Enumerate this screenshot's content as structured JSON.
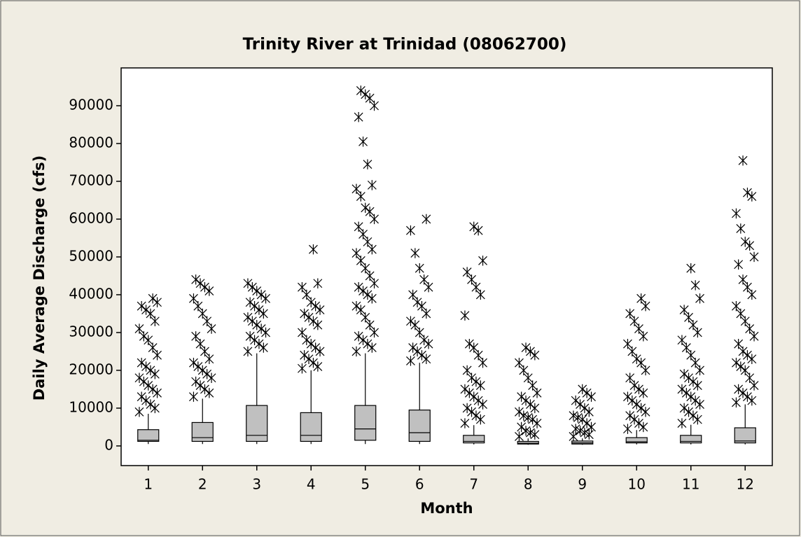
{
  "chart_data": {
    "type": "box",
    "title": "Trinity River at Trinidad (08062700)",
    "xlabel": "Month",
    "ylabel": "Daily Average Discharge (cfs)",
    "categories": [
      "1",
      "2",
      "3",
      "4",
      "5",
      "6",
      "7",
      "8",
      "9",
      "10",
      "11",
      "12"
    ],
    "color": "#c0c0c0",
    "ylim": [
      -5200,
      100000
    ],
    "yticks": [
      0,
      10000,
      20000,
      30000,
      40000,
      50000,
      60000,
      70000,
      80000,
      90000
    ],
    "boxes": [
      {
        "min": 500,
        "q1": 1200,
        "median": 1500,
        "q3": 4300,
        "max": 8500,
        "outliers": [
          9000,
          10000,
          11000,
          12000,
          13000,
          14000,
          15000,
          16000,
          17000,
          18000,
          19000,
          20000,
          21000,
          22000,
          24000,
          26000,
          28000,
          29000,
          31000,
          33000,
          35000,
          36000,
          37000,
          38000,
          39000
        ]
      },
      {
        "min": 500,
        "q1": 1200,
        "median": 2200,
        "q3": 6200,
        "max": 12500,
        "outliers": [
          13000,
          14000,
          15000,
          16000,
          17000,
          18000,
          19000,
          20000,
          21000,
          22000,
          23000,
          25000,
          27000,
          29000,
          31000,
          33000,
          35000,
          37000,
          39000,
          41000,
          42000,
          43000,
          44000
        ]
      },
      {
        "min": 500,
        "q1": 1200,
        "median": 2800,
        "q3": 10700,
        "max": 24500,
        "outliers": [
          25000,
          26000,
          27000,
          28000,
          29000,
          30000,
          31000,
          32000,
          33000,
          34000,
          35000,
          36000,
          37000,
          38000,
          39000,
          40000,
          41000,
          42000,
          43000
        ]
      },
      {
        "min": 500,
        "q1": 1200,
        "median": 2800,
        "q3": 8800,
        "max": 20000,
        "outliers": [
          20500,
          21000,
          22000,
          23000,
          24000,
          25000,
          26000,
          27000,
          28000,
          30000,
          32000,
          33000,
          34000,
          35000,
          36000,
          37000,
          38000,
          40000,
          42000,
          43000,
          52000
        ]
      },
      {
        "min": 500,
        "q1": 1500,
        "median": 4500,
        "q3": 10700,
        "max": 24500,
        "outliers": [
          25000,
          26000,
          27000,
          28000,
          29000,
          30000,
          32000,
          34000,
          36000,
          37000,
          39000,
          40000,
          41000,
          42000,
          43000,
          45000,
          47000,
          49000,
          51000,
          52000,
          54000,
          56000,
          58000,
          60000,
          62000,
          63000,
          66000,
          68000,
          69000,
          74500,
          80500,
          87000,
          90000,
          92000,
          93000,
          94000
        ]
      },
      {
        "min": 500,
        "q1": 1200,
        "median": 3500,
        "q3": 9500,
        "max": 22000,
        "outliers": [
          22500,
          23000,
          24000,
          25000,
          26000,
          27000,
          28000,
          30000,
          32000,
          33000,
          35000,
          37000,
          38000,
          40000,
          42000,
          44000,
          47000,
          51000,
          57000,
          60000
        ]
      },
      {
        "min": 400,
        "q1": 800,
        "median": 1200,
        "q3": 2800,
        "max": 5500,
        "outliers": [
          6000,
          7000,
          8000,
          9000,
          10000,
          11000,
          12000,
          13000,
          14000,
          15000,
          16000,
          17000,
          18000,
          20000,
          22000,
          24000,
          26000,
          27000,
          34500,
          40000,
          42000,
          44000,
          46000,
          49000,
          57000,
          58000
        ]
      },
      {
        "min": 300,
        "q1": 500,
        "median": 700,
        "q3": 1200,
        "max": 2000,
        "outliers": [
          2500,
          3000,
          3500,
          4000,
          5000,
          6000,
          7000,
          7500,
          8000,
          9000,
          10000,
          11000,
          12000,
          13000,
          14000,
          16000,
          18000,
          20000,
          22000,
          24000,
          25000,
          26000
        ]
      },
      {
        "min": 300,
        "q1": 500,
        "median": 800,
        "q3": 1300,
        "max": 2000,
        "outliers": [
          2500,
          3000,
          3500,
          4000,
          4500,
          5000,
          6000,
          7000,
          7500,
          8000,
          9000,
          10000,
          11000,
          12000,
          13000,
          14000,
          15000
        ]
      },
      {
        "min": 400,
        "q1": 800,
        "median": 1100,
        "q3": 2200,
        "max": 4200,
        "outliers": [
          4500,
          5000,
          6000,
          7000,
          8000,
          9000,
          10000,
          11000,
          12000,
          13000,
          14000,
          15000,
          16000,
          18000,
          20000,
          22000,
          23000,
          25000,
          27000,
          29000,
          31000,
          33000,
          35000,
          37000,
          39000
        ]
      },
      {
        "min": 400,
        "q1": 800,
        "median": 1200,
        "q3": 2800,
        "max": 5600,
        "outliers": [
          6000,
          7000,
          8000,
          9000,
          10000,
          11000,
          12000,
          13000,
          14000,
          15000,
          16000,
          17000,
          18000,
          19000,
          20000,
          22000,
          24000,
          26000,
          28000,
          30000,
          32000,
          34000,
          36000,
          39000,
          42500,
          47000
        ]
      },
      {
        "min": 400,
        "q1": 800,
        "median": 1300,
        "q3": 4800,
        "max": 11000,
        "outliers": [
          11500,
          12000,
          13000,
          14000,
          15000,
          16000,
          18000,
          20000,
          21000,
          22000,
          23000,
          24000,
          25000,
          27000,
          29000,
          31000,
          33000,
          35000,
          37000,
          40000,
          42000,
          44000,
          48000,
          50000,
          53000,
          54000,
          57500,
          61500,
          66000,
          67000,
          75500
        ]
      }
    ]
  }
}
